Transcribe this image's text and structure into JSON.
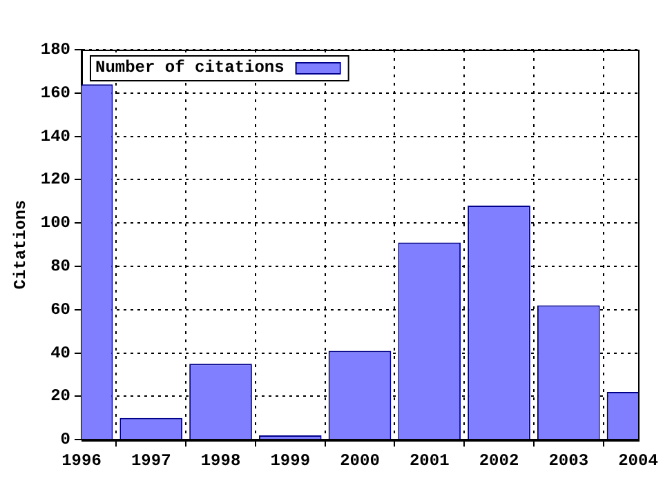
{
  "chart_data": {
    "type": "bar",
    "ylabel": "Citations",
    "x": [
      1996,
      1997,
      1998,
      1999,
      2000,
      2001,
      2002,
      2003,
      2004
    ],
    "series": [
      {
        "name": "Number of citations",
        "color": "#7f7fff",
        "values": [
          164,
          10,
          35,
          2,
          41,
          91,
          108,
          62,
          22
        ]
      }
    ],
    "xlim": [
      1996,
      2004
    ],
    "xticks": [
      1996,
      1997,
      1998,
      1999,
      2000,
      2001,
      2002,
      2003,
      2004
    ],
    "ylim": [
      0,
      180
    ],
    "yticks": [
      0,
      20,
      40,
      60,
      80,
      100,
      120,
      140,
      160,
      180
    ],
    "grid": true,
    "legend": "top left"
  }
}
